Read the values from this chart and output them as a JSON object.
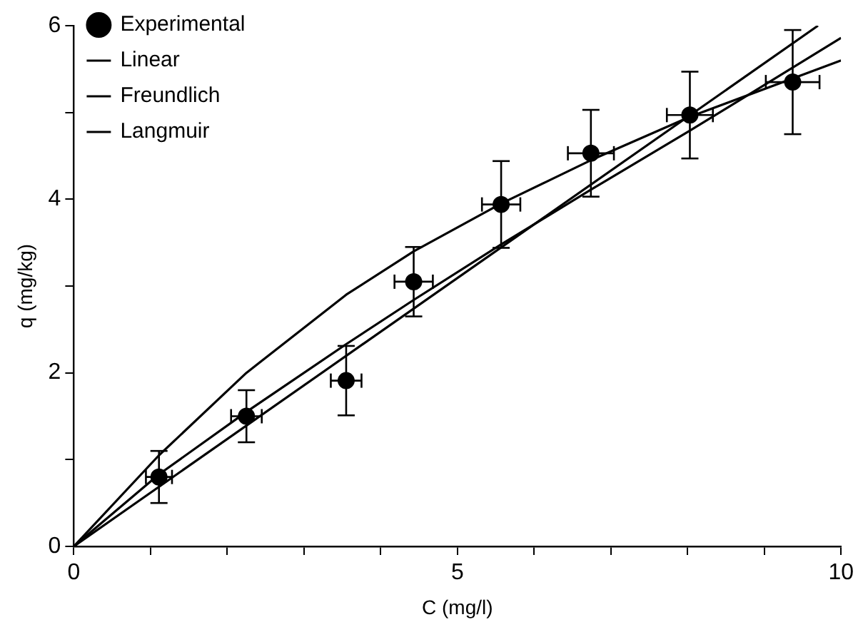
{
  "chart_data": {
    "type": "scatter",
    "xlabel": "C (mg/l)",
    "ylabel": "q (mg/kg)",
    "xlim": [
      0,
      10
    ],
    "xticks": [
      0,
      {
        "value": 1,
        "label": null
      },
      {
        "value": 2,
        "label": null
      },
      {
        "value": 3,
        "label": null
      },
      {
        "value": 4,
        "label": null
      },
      5,
      {
        "value": 6,
        "label": null
      },
      {
        "value": 7,
        "label": null
      },
      {
        "value": 8,
        "label": null
      },
      {
        "value": 9,
        "label": null
      },
      10
    ],
    "ylim": [
      0,
      6
    ],
    "yticks": [
      0,
      {
        "value": 1,
        "label": null
      },
      2,
      {
        "value": 3,
        "label": null
      },
      4,
      {
        "value": 5,
        "label": null
      },
      6
    ],
    "grid": false,
    "legend": "top left",
    "series": [
      {
        "name": "Experimental",
        "marker": "circle",
        "color": "#000000",
        "x": [
          1.11,
          2.25,
          3.55,
          4.43,
          5.57,
          6.74,
          8.03,
          9.37
        ],
        "values": [
          0.8,
          1.5,
          1.91,
          3.05,
          3.94,
          4.53,
          4.97,
          5.35
        ],
        "errors": [
          0.3,
          0.3,
          0.4,
          0.4,
          0.5,
          0.5,
          0.5,
          0.6
        ],
        "xerrors": [
          0.17,
          0.2,
          0.2,
          0.25,
          0.25,
          0.3,
          0.3,
          0.35
        ]
      },
      {
        "name": "Linear",
        "type": "line",
        "marker": "none",
        "color": "#000000",
        "x": [
          0,
          9.7
        ],
        "values": [
          0,
          6
        ]
      },
      {
        "name": "Freundlich",
        "type": "line",
        "marker": "none",
        "color": "#000000",
        "x": [
          0,
          1.11,
          2.25,
          3.55,
          4.43,
          5.57,
          6.74,
          8.03,
          10
        ],
        "values": [
          0,
          0.83,
          1.55,
          2.33,
          2.84,
          3.48,
          4.11,
          4.79,
          5.86
        ]
      },
      {
        "name": "Langmuir",
        "type": "line",
        "marker": "none",
        "color": "#000000",
        "x": [
          0,
          1.11,
          2.25,
          3.55,
          4.43,
          5.57,
          6.74,
          8.03,
          10
        ],
        "values": [
          0,
          1.05,
          2.0,
          2.9,
          3.4,
          3.95,
          4.45,
          4.95,
          5.6
        ]
      }
    ]
  }
}
